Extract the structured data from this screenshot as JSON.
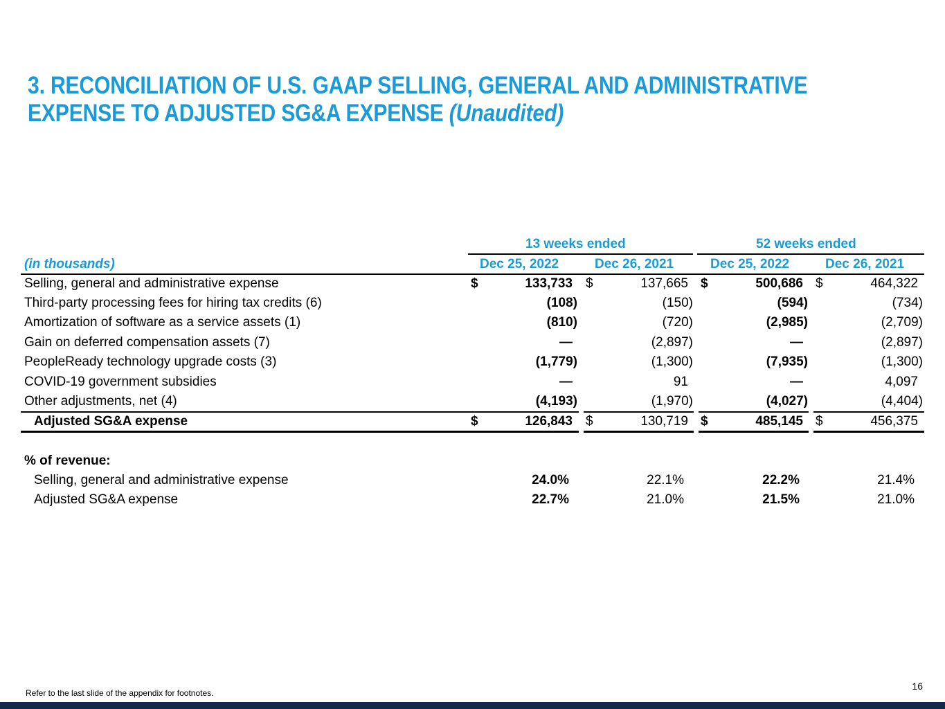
{
  "title": {
    "line1": "3. RECONCILIATION OF U.S. GAAP SELLING, GENERAL AND ADMINISTRATIVE",
    "line2_main": "EXPENSE TO ADJUSTED SG&A EXPENSE ",
    "line2_italic": "(Unaudited)"
  },
  "table": {
    "units_label": "(in thousands)",
    "group_headers": [
      "13 weeks ended",
      "52 weeks ended"
    ],
    "column_headers": [
      "Dec 25, 2022",
      "Dec 26, 2021",
      "Dec 25, 2022",
      "Dec 26, 2021"
    ],
    "rows": [
      {
        "label": "Selling, general and administrative expense",
        "dollar": [
          "$",
          "$",
          "$",
          "$"
        ],
        "values": [
          "133,733",
          "137,665",
          "500,686",
          "464,322"
        ]
      },
      {
        "label": "Third-party processing fees for hiring tax credits (6)",
        "values": [
          "(108)",
          "(150)",
          "(594)",
          "(734)"
        ]
      },
      {
        "label": "Amortization of software as a service assets (1)",
        "values": [
          "(810)",
          "(720)",
          "(2,985)",
          "(2,709)"
        ]
      },
      {
        "label": "Gain on deferred compensation assets (7)",
        "values": [
          "—",
          "(2,897)",
          "—",
          "(2,897)"
        ]
      },
      {
        "label": "PeopleReady technology upgrade costs (3)",
        "values": [
          "(1,779)",
          "(1,300)",
          "(7,935)",
          "(1,300)"
        ]
      },
      {
        "label": "COVID-19 government subsidies",
        "values": [
          "—",
          "91",
          "—",
          "4,097"
        ]
      },
      {
        "label": "Other adjustments, net (4)",
        "values": [
          "(4,193)",
          "(1,970)",
          "(4,027)",
          "(4,404)"
        ]
      }
    ],
    "total_row": {
      "label": "Adjusted SG&A expense",
      "dollar": [
        "$",
        "$",
        "$",
        "$"
      ],
      "values": [
        "126,843",
        "130,719",
        "485,145",
        "456,375"
      ]
    },
    "revenue_section": {
      "heading": "% of revenue:",
      "rows": [
        {
          "label": "Selling, general and administrative expense",
          "values": [
            "24.0%",
            "22.1%",
            "22.2%",
            "21.4%"
          ]
        },
        {
          "label": "Adjusted SG&A expense",
          "values": [
            "22.7%",
            "21.0%",
            "21.5%",
            "21.0%"
          ]
        }
      ]
    }
  },
  "footnote": "Refer to the last slide of the appendix for footnotes.",
  "page_number": "16",
  "colors": {
    "accent": "#1a9ad6",
    "footer_bar": "#13294b"
  }
}
